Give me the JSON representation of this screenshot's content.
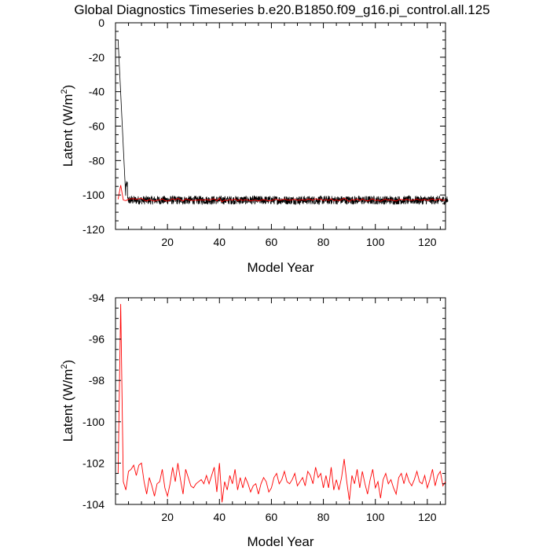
{
  "title": "Global Diagnostics Timeseries b.e20.B1850.f09_g16.pi_control.all.125",
  "colors": {
    "monthly": "#000000",
    "annual": "#ff0000",
    "axes": "#000000"
  },
  "chart_data": [
    {
      "type": "line",
      "xlabel": "Model Year",
      "ylabel_main": "Latent (W/m",
      "ylabel_sup": "2",
      "ylabel_end": ")",
      "xlim": [
        0,
        127
      ],
      "ylim": [
        -120,
        0
      ],
      "x_ticks": [
        20,
        40,
        60,
        80,
        100,
        120
      ],
      "y_ticks": [
        0,
        -20,
        -40,
        -60,
        -80,
        -100,
        -120
      ],
      "grid": false,
      "series": [
        {
          "color": "#000000",
          "generator": "monthly",
          "start_value": -10,
          "spike_value": -94,
          "baseline": -103,
          "spread": 2.5,
          "months": 1524
        },
        {
          "color": "#ff0000",
          "generator": "annual"
        }
      ]
    },
    {
      "type": "line",
      "xlabel": "Model Year",
      "ylabel_main": "Latent (W/m",
      "ylabel_sup": "2",
      "ylabel_end": ")",
      "xlim": [
        0,
        127
      ],
      "ylim": [
        -104,
        -94
      ],
      "x_ticks": [
        20,
        40,
        60,
        80,
        100,
        120
      ],
      "y_ticks": [
        -94,
        -96,
        -98,
        -100,
        -102,
        -104
      ],
      "grid": false,
      "series": [
        {
          "color": "#ff0000",
          "x": [
            1,
            2,
            3,
            4,
            5,
            6,
            7,
            8,
            9,
            10,
            11,
            12,
            13,
            14,
            15,
            16,
            17,
            18,
            19,
            20,
            21,
            22,
            23,
            24,
            25,
            26,
            27,
            28,
            29,
            30,
            31,
            32,
            33,
            34,
            35,
            36,
            37,
            38,
            39,
            40,
            41,
            42,
            43,
            44,
            45,
            46,
            47,
            48,
            49,
            50,
            51,
            52,
            53,
            54,
            55,
            56,
            57,
            58,
            59,
            60,
            61,
            62,
            63,
            64,
            65,
            66,
            67,
            68,
            69,
            70,
            71,
            72,
            73,
            74,
            75,
            76,
            77,
            78,
            79,
            80,
            81,
            82,
            83,
            84,
            85,
            86,
            87,
            88,
            89,
            90,
            91,
            92,
            93,
            94,
            95,
            96,
            97,
            98,
            99,
            100,
            101,
            102,
            103,
            104,
            105,
            106,
            107,
            108,
            109,
            110,
            111,
            112,
            113,
            114,
            115,
            116,
            117,
            118,
            119,
            120,
            121,
            122,
            123,
            124,
            125,
            126,
            127
          ],
          "values": [
            -102.5,
            -94.3,
            -102.9,
            -103.3,
            -102.4,
            -102.3,
            -102.1,
            -102.6,
            -102.1,
            -102.0,
            -102.9,
            -103.5,
            -102.7,
            -103.1,
            -103.6,
            -103.0,
            -102.9,
            -102.3,
            -103.2,
            -103.6,
            -103.0,
            -102.2,
            -102.9,
            -102.0,
            -102.8,
            -103.5,
            -102.3,
            -102.7,
            -103.1,
            -103.2,
            -103.0,
            -102.9,
            -102.8,
            -103.0,
            -102.6,
            -103.0,
            -102.6,
            -102.2,
            -103.4,
            -102.0,
            -103.9,
            -102.9,
            -103.3,
            -102.6,
            -103.0,
            -102.3,
            -103.3,
            -102.7,
            -103.2,
            -102.7,
            -103.0,
            -103.4,
            -103.1,
            -103.0,
            -103.5,
            -103.0,
            -102.7,
            -102.9,
            -103.4,
            -103.2,
            -102.7,
            -102.5,
            -103.0,
            -102.8,
            -102.4,
            -102.9,
            -103.0,
            -102.8,
            -102.5,
            -103.1,
            -102.9,
            -102.7,
            -103.1,
            -102.4,
            -102.6,
            -103.0,
            -102.2,
            -102.7,
            -102.5,
            -103.2,
            -102.6,
            -103.2,
            -102.2,
            -103.3,
            -102.8,
            -103.3,
            -102.7,
            -101.8,
            -102.9,
            -103.8,
            -102.6,
            -103.0,
            -102.3,
            -103.2,
            -102.4,
            -103.0,
            -103.5,
            -102.8,
            -102.3,
            -103.2,
            -102.9,
            -103.7,
            -102.8,
            -102.5,
            -103.0,
            -102.8,
            -103.2,
            -103.5,
            -102.7,
            -102.5,
            -103.0,
            -102.5,
            -102.9,
            -103.1,
            -102.8,
            -102.4,
            -102.9,
            -103.0,
            -102.6,
            -103.2,
            -102.8,
            -102.3,
            -103.1,
            -102.6,
            -102.4,
            -103.1,
            -102.9
          ]
        }
      ]
    }
  ]
}
